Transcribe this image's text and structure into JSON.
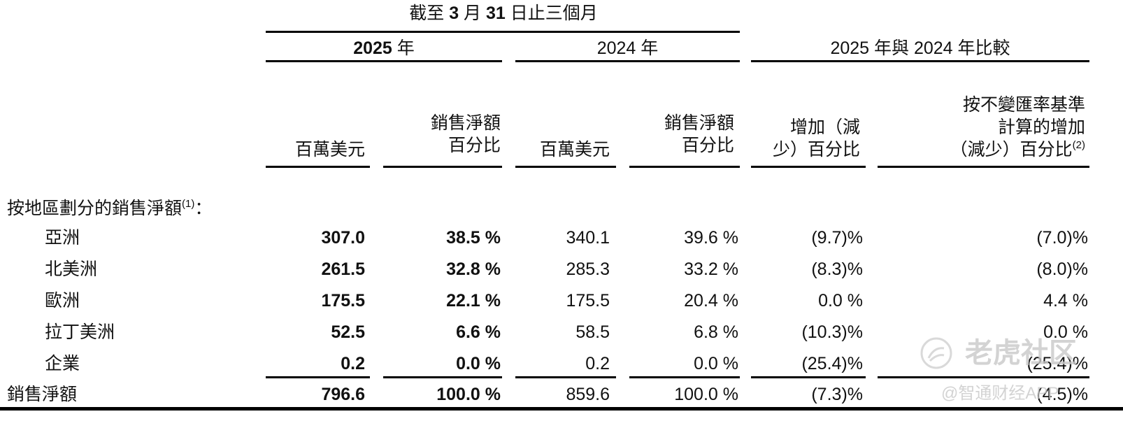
{
  "header": {
    "period": {
      "pre": "截至 ",
      "b1": "3",
      "mid": " 月 ",
      "b2": "31",
      "post": " 日止三個月"
    },
    "year_2025": {
      "num": "2025",
      "unit": " 年"
    },
    "year_2024": "2024 年",
    "comparison": "2025 年與 2024 年比較"
  },
  "subheaders": {
    "col1": "百萬美元",
    "col2": [
      "銷售淨額",
      "百分比"
    ],
    "col3": "百萬美元",
    "col4": [
      "銷售淨額",
      "百分比"
    ],
    "col5": [
      "增加（減",
      "少）百分比"
    ],
    "col6": [
      "按不變匯率基準",
      "計算的增加",
      "（減少）百分比",
      "(2)"
    ]
  },
  "section_label": {
    "text": "按地區劃分的銷售淨額",
    "note": "(1)",
    "suffix": "："
  },
  "rows": [
    {
      "label": "亞洲",
      "c1": "307.0",
      "c2": "38.5 %",
      "c3": "340.1",
      "c4": "39.6 %",
      "c5": "(9.7)%",
      "c6": "(7.0)%"
    },
    {
      "label": "北美洲",
      "c1": "261.5",
      "c2": "32.8 %",
      "c3": "285.3",
      "c4": "33.2 %",
      "c5": "(8.3)%",
      "c6": "(8.0)%"
    },
    {
      "label": "歐洲",
      "c1": "175.5",
      "c2": "22.1 %",
      "c3": "175.5",
      "c4": "20.4 %",
      "c5": "0.0 %",
      "c6": "4.4 %"
    },
    {
      "label": "拉丁美洲",
      "c1": "52.5",
      "c2": "6.6 %",
      "c3": "58.5",
      "c4": "6.8 %",
      "c5": "(10.3)%",
      "c6": "0.0 %"
    },
    {
      "label": "企業",
      "c1": "0.2",
      "c2": "0.0 %",
      "c3": "0.2",
      "c4": "0.0 %",
      "c5": "(25.4)%",
      "c6": "(25.4)%"
    }
  ],
  "total": {
    "label": "銷售淨額",
    "c1": "796.6",
    "c2": "100.0 %",
    "c3": "859.6",
    "c4": "100.0 %",
    "c5": "(7.3)%",
    "c6": "(4.5)%"
  },
  "watermark": {
    "logo_text": "老虎社区",
    "source": "@智通财经APP"
  }
}
